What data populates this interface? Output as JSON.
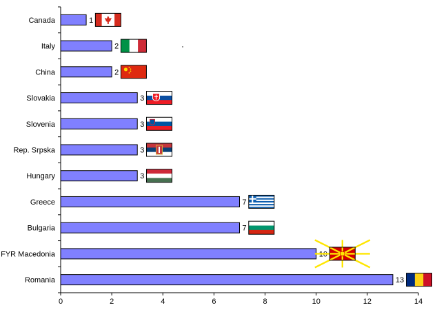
{
  "chart_data": {
    "type": "bar",
    "orientation": "horizontal",
    "categories": [
      "Canada",
      "Italy",
      "China",
      "Slovakia",
      "Slovenia",
      "Rep. Srpska",
      "Hungary",
      "Greece",
      "Bulgaria",
      "FYR Macedonia",
      "Romania"
    ],
    "values": [
      1,
      2,
      2,
      3,
      3,
      3,
      3,
      7,
      7,
      10,
      13
    ],
    "xlim": [
      0,
      14
    ],
    "xticks": [
      0,
      2,
      4,
      6,
      8,
      10,
      12,
      14
    ],
    "grid": false,
    "legend": "none",
    "bar_color": "#8080ff",
    "flags": [
      "canada-flag",
      "italy-flag",
      "china-flag",
      "slovakia-flag",
      "slovenia-flag",
      "republika-srpska-flag",
      "hungary-flag",
      "greece-flag",
      "bulgaria-flag",
      "macedonia-flag",
      "romania-flag"
    ]
  }
}
